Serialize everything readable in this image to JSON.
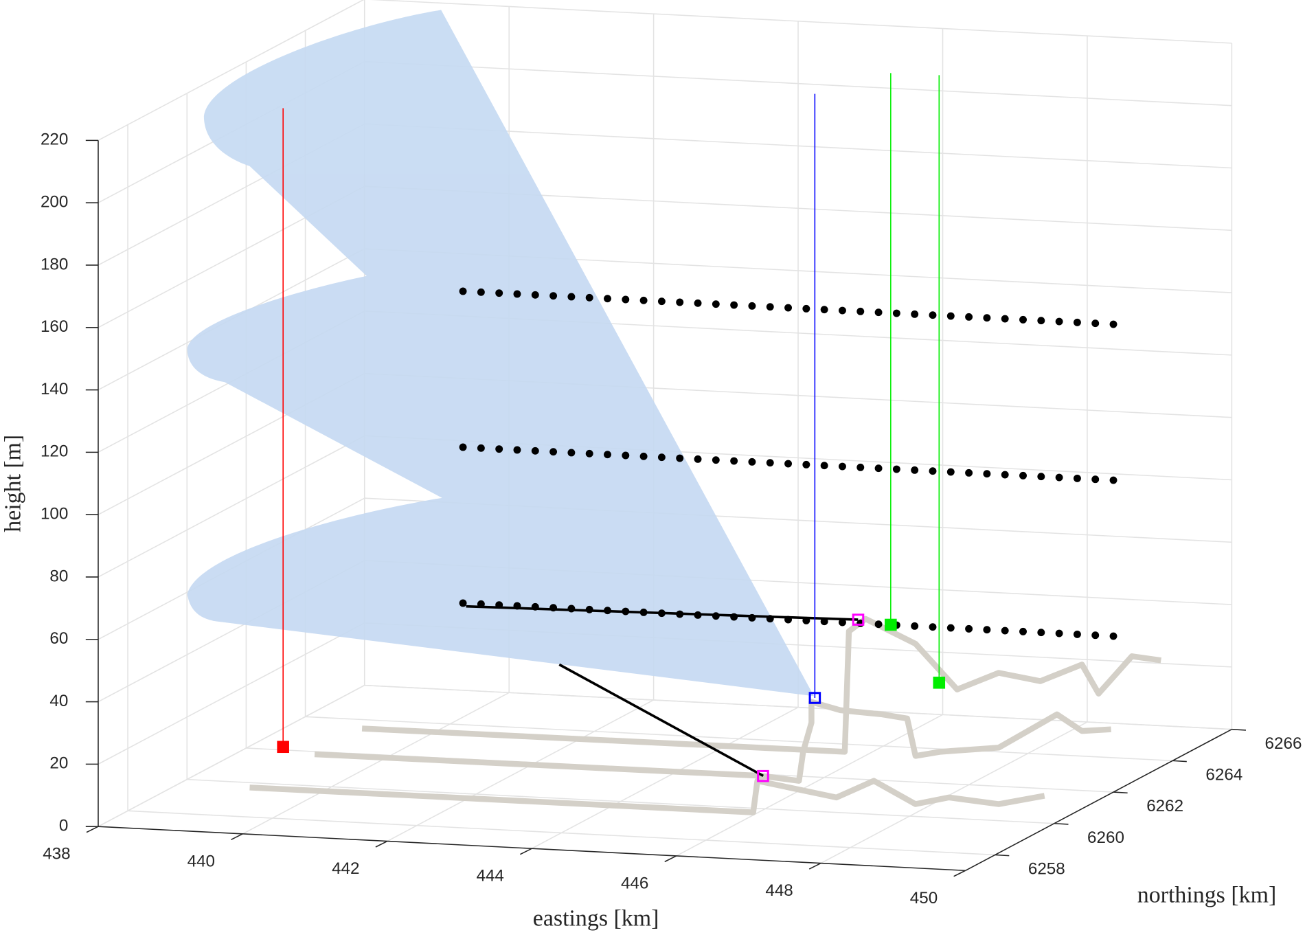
{
  "chart_data": {
    "type": "scatter3d",
    "xlabel": "eastings [km]",
    "ylabel": "northings [km]",
    "zlabel": "height [m]",
    "xlim": [
      438,
      450
    ],
    "ylim": [
      6257,
      6266
    ],
    "zlim": [
      0,
      220
    ],
    "xticks": [
      438,
      440,
      442,
      444,
      446,
      448,
      450
    ],
    "yticks": [
      6258,
      6260,
      6262,
      6264,
      6266
    ],
    "zticks": [
      0,
      20,
      40,
      60,
      80,
      100,
      120,
      140,
      160,
      180,
      200,
      220
    ],
    "grid": true,
    "x": [
      441,
      441.25,
      441.5,
      441.75,
      442,
      442.25,
      442.5,
      442.75,
      443,
      443.25,
      443.5,
      443.75,
      444,
      444.25,
      444.5,
      444.75,
      445,
      445.25,
      445.5,
      445.75,
      446,
      446.25,
      446.5,
      446.75,
      447,
      447.25,
      447.5,
      447.75,
      448,
      448.25,
      448.5,
      448.75,
      449,
      449.25,
      449.5,
      449.75,
      450
    ],
    "series": [
      {
        "color": "#000000",
        "northing": 6262,
        "values": [
          150,
          150,
          150,
          150,
          150,
          150,
          150,
          150,
          150,
          150,
          150,
          150,
          150,
          150,
          150,
          150,
          150,
          150,
          150,
          150,
          150,
          150,
          150,
          150,
          150,
          150,
          150,
          150,
          150,
          150,
          150,
          150,
          150,
          150,
          150,
          150,
          150
        ]
      },
      {
        "color": "#000000",
        "northing": 6262,
        "values": [
          100,
          100,
          100,
          100,
          100,
          100,
          100,
          100,
          100,
          100,
          100,
          100,
          100,
          100,
          100,
          100,
          100,
          100,
          100,
          100,
          100,
          100,
          100,
          100,
          100,
          100,
          100,
          100,
          100,
          100,
          100,
          100,
          100,
          100,
          100,
          100,
          100
        ]
      },
      {
        "color": "#000000",
        "northing": 6262,
        "values": [
          50,
          50,
          50,
          50,
          50,
          50,
          50,
          50,
          50,
          50,
          50,
          50,
          50,
          50,
          50,
          50,
          50,
          50,
          50,
          50,
          50,
          50,
          50,
          50,
          50,
          50,
          50,
          50,
          50,
          50,
          50,
          50,
          50,
          50,
          50,
          50,
          50
        ]
      }
    ],
    "masts": [
      {
        "color": "#ff0000",
        "marker": "filled",
        "x": 439.33,
        "y": 6260,
        "z": [
          12,
          216.8
        ]
      },
      {
        "color": "#0000ff",
        "marker": "open",
        "x": 445.05,
        "y": 6264,
        "z": [
          14.3,
          208
        ]
      },
      {
        "color": "#00ee00",
        "marker": "filled",
        "x": 446.1,
        "y": 6264,
        "z": [
          39,
          215.9
        ]
      },
      {
        "color": "#00ee00",
        "marker": "filled",
        "x": 446.36,
        "y": 6265,
        "z": [
          15.7,
          210.5
        ]
      }
    ],
    "points": [
      {
        "color": "#ff00ff",
        "x": 446.79,
        "y": 6258,
        "z": 21.5
      },
      {
        "color": "#ff00ff",
        "x": 445.65,
        "y": 6264,
        "z": 40.1
      }
    ]
  }
}
